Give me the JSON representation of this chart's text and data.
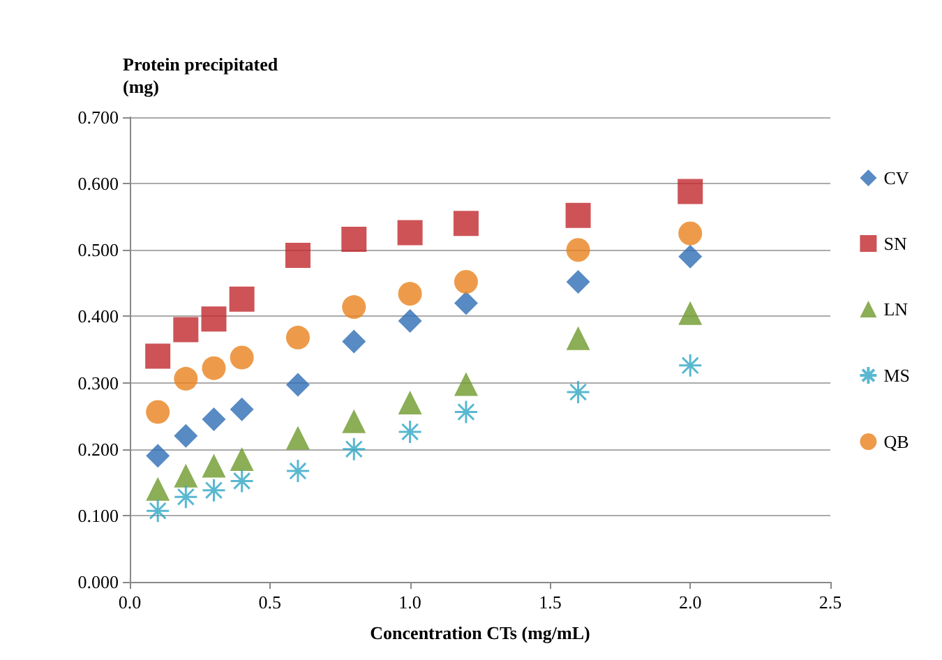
{
  "chart_data": {
    "type": "scatter",
    "xlabel": "Concentration CTs (mg/mL)",
    "ylabel": "Protein precipitated\n(mg)",
    "x": [
      0.1,
      0.2,
      0.3,
      0.4,
      0.6,
      0.8,
      1.0,
      1.2,
      1.6,
      2.0
    ],
    "series": [
      {
        "name": "CV",
        "color": "#2e6db4",
        "marker": "diamond",
        "values": [
          0.19,
          0.22,
          0.245,
          0.26,
          0.297,
          0.362,
          0.393,
          0.42,
          0.452,
          0.49
        ]
      },
      {
        "name": "SN",
        "color": "#c0282d",
        "marker": "square",
        "values": [
          0.34,
          0.38,
          0.396,
          0.426,
          0.492,
          0.516,
          0.526,
          0.54,
          0.552,
          0.588
        ]
      },
      {
        "name": "LN",
        "color": "#6e9a2c",
        "marker": "triangle",
        "values": [
          0.14,
          0.16,
          0.175,
          0.185,
          0.217,
          0.242,
          0.27,
          0.298,
          0.367,
          0.405
        ]
      },
      {
        "name": "MS",
        "color": "#2fa6c4",
        "marker": "cross",
        "values": [
          0.107,
          0.128,
          0.138,
          0.152,
          0.167,
          0.2,
          0.226,
          0.256,
          0.286,
          0.326
        ]
      },
      {
        "name": "QB",
        "color": "#e8821e",
        "marker": "circle",
        "values": [
          0.256,
          0.306,
          0.322,
          0.338,
          0.368,
          0.414,
          0.434,
          0.452,
          0.5,
          0.525
        ]
      }
    ],
    "xlim": [
      0,
      2.5
    ],
    "xticks": [
      {
        "value": 0,
        "label": "0.0"
      },
      {
        "value": 0.5,
        "label": "0.5"
      },
      {
        "value": 1,
        "label": "1.0"
      },
      {
        "value": 1.5,
        "label": "1.5"
      },
      {
        "value": 2,
        "label": "2.0"
      },
      {
        "value": 2.5,
        "label": "2.5"
      }
    ],
    "ylim": [
      0,
      0.7
    ],
    "yticks": [
      {
        "value": 0,
        "label": "0.000"
      },
      {
        "value": 0.1,
        "label": "0.100"
      },
      {
        "value": 0.2,
        "label": "0.200"
      },
      {
        "value": 0.3,
        "label": "0.300"
      },
      {
        "value": 0.4,
        "label": "0.400"
      },
      {
        "value": 0.5,
        "label": "0.500"
      },
      {
        "value": 0.6,
        "label": "0.600"
      },
      {
        "value": 0.7,
        "label": "0.700"
      }
    ],
    "grid": "y",
    "legend": "right"
  }
}
